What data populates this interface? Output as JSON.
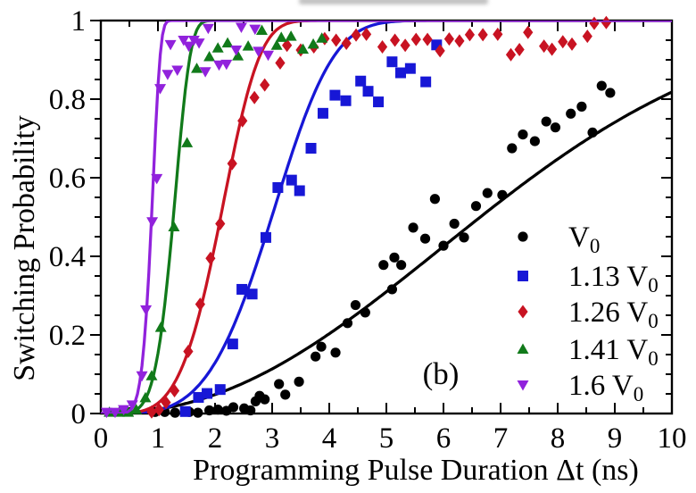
{
  "figure": {
    "panel_label": "(b)",
    "background": "#ffffff"
  },
  "chart_data": {
    "type": "scatter",
    "title": "",
    "xlabel": "Programming Pulse Duration Δt (ns)",
    "ylabel": "Switching Probability",
    "xlim": [
      0,
      10
    ],
    "ylim": [
      0,
      1
    ],
    "grid": false,
    "x_tick_labels": [
      "0",
      "1",
      "2",
      "3",
      "4",
      "5",
      "6",
      "7",
      "8",
      "9",
      "10"
    ],
    "x_major_ticks": [
      0,
      1,
      2,
      3,
      4,
      5,
      6,
      7,
      8,
      9,
      10
    ],
    "x_minor_step": 0.5,
    "y_tick_labels": [
      "0",
      "0.2",
      "0.4",
      "0.6",
      "0.8",
      "1"
    ],
    "y_major_ticks": [
      0,
      0.2,
      0.4,
      0.6,
      0.8,
      1
    ],
    "y_minor_step": 0.05,
    "legend_position": "center-right",
    "frame_color": "#000000",
    "series": [
      {
        "name": "V0",
        "legend_prefix": "",
        "legend_main": "V",
        "legend_sub": "0",
        "color": "#000000",
        "marker": "circle",
        "fit": {
          "model": "weibull",
          "tau": 7.85,
          "k": 2.2,
          "sat": 1.0
        },
        "points": [
          [
            0.95,
            0.004
          ],
          [
            1.12,
            0.004
          ],
          [
            1.3,
            0.002
          ],
          [
            1.55,
            0.004
          ],
          [
            1.7,
            0.002
          ],
          [
            1.9,
            0.008
          ],
          [
            2.05,
            0.01
          ],
          [
            2.2,
            0.007
          ],
          [
            2.32,
            0.016
          ],
          [
            2.51,
            0.013
          ],
          [
            2.62,
            0.008
          ],
          [
            2.71,
            0.031
          ],
          [
            2.78,
            0.045
          ],
          [
            2.87,
            0.036
          ],
          [
            3.12,
            0.075
          ],
          [
            3.23,
            0.048
          ],
          [
            3.47,
            0.081
          ],
          [
            3.76,
            0.145
          ],
          [
            3.86,
            0.17
          ],
          [
            4.11,
            0.155
          ],
          [
            4.32,
            0.23
          ],
          [
            4.46,
            0.276
          ],
          [
            4.63,
            0.257
          ],
          [
            4.95,
            0.378
          ],
          [
            5.1,
            0.316
          ],
          [
            5.14,
            0.397
          ],
          [
            5.26,
            0.378
          ],
          [
            5.47,
            0.473
          ],
          [
            5.68,
            0.445
          ],
          [
            5.85,
            0.546
          ],
          [
            6.0,
            0.427
          ],
          [
            6.19,
            0.483
          ],
          [
            6.36,
            0.448
          ],
          [
            6.57,
            0.528
          ],
          [
            6.77,
            0.561
          ],
          [
            7.03,
            0.556
          ],
          [
            7.2,
            0.675
          ],
          [
            7.39,
            0.71
          ],
          [
            7.6,
            0.693
          ],
          [
            7.8,
            0.743
          ],
          [
            7.96,
            0.728
          ],
          [
            8.23,
            0.763
          ],
          [
            8.42,
            0.781
          ],
          [
            8.61,
            0.715
          ],
          [
            8.77,
            0.834
          ],
          [
            8.92,
            0.816
          ]
        ]
      },
      {
        "name": "1.13 V0",
        "legend_prefix": "1.13 ",
        "legend_main": "V",
        "legend_sub": "0",
        "color": "#1717d6",
        "marker": "square",
        "fit": {
          "model": "weibull",
          "tau": 3.28,
          "k": 4.0,
          "sat": 1.0
        },
        "points": [
          [
            1.48,
            0.005
          ],
          [
            1.71,
            0.041
          ],
          [
            1.86,
            0.051
          ],
          [
            2.09,
            0.061
          ],
          [
            2.31,
            0.177
          ],
          [
            2.47,
            0.316
          ],
          [
            2.65,
            0.304
          ],
          [
            2.89,
            0.448
          ],
          [
            3.1,
            0.575
          ],
          [
            3.34,
            0.594
          ],
          [
            3.48,
            0.567
          ],
          [
            3.68,
            0.675
          ],
          [
            3.89,
            0.764
          ],
          [
            4.1,
            0.81
          ],
          [
            4.29,
            0.796
          ],
          [
            4.55,
            0.846
          ],
          [
            4.68,
            0.82
          ],
          [
            4.86,
            0.793
          ],
          [
            5.1,
            0.895
          ],
          [
            5.25,
            0.867
          ],
          [
            5.42,
            0.878
          ],
          [
            5.69,
            0.844
          ],
          [
            5.88,
            0.938
          ]
        ]
      },
      {
        "name": "1.26 V0",
        "legend_prefix": "1.26 ",
        "legend_main": "V",
        "legend_sub": "0",
        "color": "#c81322",
        "marker": "diamond",
        "fit": {
          "model": "weibull",
          "tau": 2.28,
          "k": 4.4,
          "sat": 1.0
        },
        "points": [
          [
            0.89,
            0.004
          ],
          [
            1.02,
            0.01
          ],
          [
            1.14,
            0.028
          ],
          [
            1.29,
            0.058
          ],
          [
            1.53,
            0.158
          ],
          [
            1.74,
            0.278
          ],
          [
            1.92,
            0.395
          ],
          [
            2.09,
            0.483
          ],
          [
            2.3,
            0.636
          ],
          [
            2.48,
            0.745
          ],
          [
            2.69,
            0.804
          ],
          [
            2.87,
            0.836
          ],
          [
            3.14,
            0.892
          ],
          [
            3.26,
            0.937
          ],
          [
            3.5,
            0.925
          ],
          [
            3.73,
            0.933
          ],
          [
            3.92,
            0.954
          ],
          [
            4.12,
            0.95
          ],
          [
            4.3,
            0.942
          ],
          [
            4.47,
            0.963
          ],
          [
            4.65,
            0.965
          ],
          [
            4.93,
            0.933
          ],
          [
            5.15,
            0.95
          ],
          [
            5.33,
            0.937
          ],
          [
            5.52,
            0.952
          ],
          [
            5.72,
            0.952
          ],
          [
            5.94,
            0.923
          ],
          [
            6.1,
            0.953
          ],
          [
            6.28,
            0.948
          ],
          [
            6.46,
            0.964
          ],
          [
            6.69,
            0.964
          ],
          [
            6.95,
            0.965
          ],
          [
            7.18,
            0.913
          ],
          [
            7.33,
            0.926
          ],
          [
            7.48,
            0.97
          ],
          [
            7.76,
            0.935
          ],
          [
            7.9,
            0.927
          ],
          [
            8.09,
            0.946
          ],
          [
            8.25,
            0.94
          ],
          [
            8.52,
            0.96
          ],
          [
            8.64,
            0.993
          ],
          [
            8.85,
            0.995
          ]
        ]
      },
      {
        "name": "1.41 V0",
        "legend_prefix": "1.41 ",
        "legend_main": "V",
        "legend_sub": "0",
        "color": "#117a1a",
        "marker": "triangle-up",
        "fit": {
          "model": "weibull",
          "tau": 1.35,
          "k": 6.0,
          "sat": 1.0
        },
        "points": [
          [
            0.15,
            0.003
          ],
          [
            0.32,
            0.003
          ],
          [
            0.48,
            0.003
          ],
          [
            0.62,
            0.01
          ],
          [
            0.78,
            0.04
          ],
          [
            0.89,
            0.096
          ],
          [
            1.05,
            0.219
          ],
          [
            1.28,
            0.475
          ],
          [
            1.51,
            0.689
          ],
          [
            1.68,
            0.878
          ],
          [
            1.9,
            0.908
          ],
          [
            2.05,
            0.93
          ],
          [
            2.22,
            0.943
          ],
          [
            2.4,
            0.91
          ],
          [
            2.58,
            0.935
          ],
          [
            2.82,
            0.975
          ],
          [
            3.08,
            0.937
          ],
          [
            3.16,
            0.957
          ],
          [
            3.33,
            0.96
          ],
          [
            3.54,
            0.927
          ],
          [
            3.72,
            0.94
          ],
          [
            3.87,
            0.955
          ]
        ]
      },
      {
        "name": "1.6 V0",
        "legend_prefix": "1.6 ",
        "legend_main": "V",
        "legend_sub": "0",
        "color": "#9122dc",
        "marker": "triangle-down",
        "fit": {
          "model": "weibull",
          "tau": 0.93,
          "k": 8.0,
          "sat": 1.0
        },
        "points": [
          [
            0.1,
            0.003
          ],
          [
            0.25,
            0.003
          ],
          [
            0.4,
            0.01
          ],
          [
            0.55,
            0.022
          ],
          [
            0.72,
            0.096
          ],
          [
            0.79,
            0.264
          ],
          [
            0.9,
            0.488
          ],
          [
            0.98,
            0.598
          ],
          [
            1.04,
            0.827
          ],
          [
            1.17,
            0.863
          ],
          [
            1.22,
            0.939
          ],
          [
            1.34,
            0.874
          ],
          [
            1.45,
            0.95
          ],
          [
            1.54,
            0.935
          ],
          [
            1.63,
            0.95
          ],
          [
            1.72,
            0.943
          ],
          [
            1.83,
            0.87
          ],
          [
            1.88,
            0.98
          ],
          [
            2.07,
            0.887
          ],
          [
            2.2,
            0.889
          ],
          [
            2.37,
            0.925
          ],
          [
            2.46,
            0.983
          ],
          [
            2.7,
            0.978
          ],
          [
            2.76,
            0.922
          ],
          [
            2.93,
            0.912
          ]
        ]
      }
    ]
  }
}
